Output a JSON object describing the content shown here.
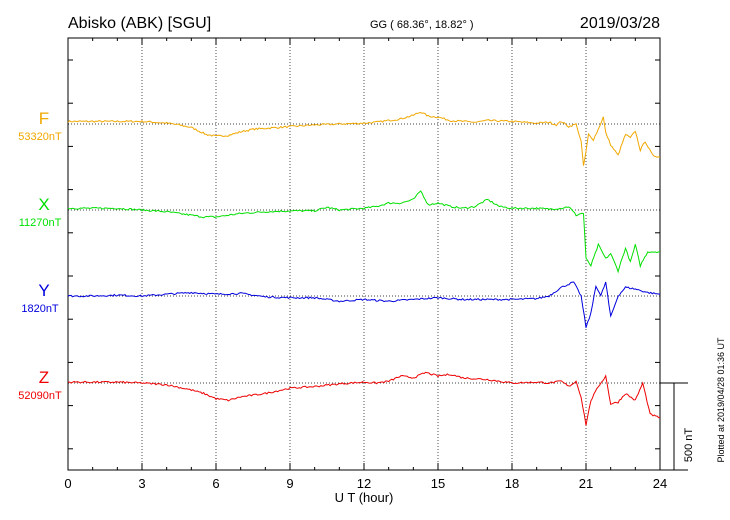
{
  "header": {
    "station": "Abisko (ABK)  [SGU]",
    "coords": "GG ( 68.36°,  18.82° )",
    "date": "2019/03/28"
  },
  "footer_note": "Plotted at 2019/04/28 01:36 UT",
  "scale_label": "500 nT",
  "colors": {
    "F": "#f0a800",
    "X": "#00e000",
    "Y": "#0000dd",
    "Z": "#ee0000"
  },
  "chart_data": {
    "type": "line",
    "xlabel": "U T (hour)",
    "ylabel": "",
    "xlim": [
      0,
      24
    ],
    "xticks": [
      0,
      3,
      6,
      9,
      12,
      15,
      18,
      21,
      24
    ],
    "grid": true,
    "scale_bar_nT": 500,
    "series": [
      {
        "name": "F",
        "baseline_label": "53320nT",
        "baseline_nT": 53320,
        "x": [
          0,
          1,
          2,
          3,
          4,
          4.5,
          5,
          5.3,
          5.6,
          6,
          6.5,
          7,
          7.5,
          8,
          9,
          10,
          11,
          12,
          12.5,
          13,
          13.5,
          14,
          14.3,
          14.6,
          15,
          15.5,
          16,
          16.5,
          17,
          18,
          19,
          19.5,
          19.8,
          20,
          20.3,
          20.6,
          20.8,
          20.9,
          21,
          21.1,
          21.3,
          21.5,
          21.7,
          21.8,
          22,
          22.3,
          22.6,
          22.8,
          23,
          23.2,
          23.4,
          23.7,
          24
        ],
        "values": [
          15,
          15,
          15,
          15,
          5,
          -5,
          -20,
          -40,
          -60,
          -70,
          -65,
          -45,
          -30,
          -25,
          -15,
          -5,
          0,
          5,
          10,
          20,
          30,
          50,
          70,
          45,
          40,
          20,
          15,
          10,
          20,
          15,
          5,
          10,
          -5,
          15,
          -15,
          0,
          -100,
          -240,
          -160,
          -60,
          -90,
          -30,
          40,
          -50,
          -120,
          -180,
          -60,
          -80,
          -40,
          -150,
          -100,
          -180,
          -190
        ]
      },
      {
        "name": "X",
        "baseline_label": "11270nT",
        "baseline_nT": 11270,
        "x": [
          0,
          1,
          2,
          3,
          4,
          4.5,
          5,
          5.5,
          6,
          6.5,
          7,
          7.5,
          8,
          9,
          10,
          10.5,
          11,
          12,
          12.5,
          13,
          13.5,
          14,
          14.3,
          14.6,
          15,
          15.5,
          16,
          16.5,
          17,
          17.5,
          18,
          19,
          19.5,
          20,
          20.3,
          20.6,
          20.8,
          20.9,
          21,
          21.2,
          21.5,
          21.8,
          22,
          22.3,
          22.6,
          22.8,
          23,
          23.2,
          23.5,
          24
        ],
        "values": [
          10,
          10,
          10,
          0,
          -10,
          -20,
          -30,
          -40,
          -40,
          -30,
          -20,
          -15,
          -10,
          -5,
          -5,
          15,
          0,
          10,
          20,
          40,
          40,
          60,
          110,
          30,
          40,
          20,
          10,
          20,
          60,
          20,
          10,
          10,
          5,
          10,
          20,
          -30,
          -20,
          -20,
          -280,
          -320,
          -200,
          -280,
          -250,
          -350,
          -220,
          -300,
          -200,
          -320,
          -240,
          -240
        ]
      },
      {
        "name": "Y",
        "baseline_label": "1820nT",
        "baseline_nT": 1820,
        "x": [
          0,
          1,
          2,
          3,
          4,
          5,
          6,
          7,
          8,
          9,
          10,
          11,
          12,
          13,
          14,
          15,
          16,
          17,
          18,
          19,
          19.5,
          20,
          20.5,
          20.8,
          21,
          21.2,
          21.4,
          21.6,
          21.8,
          22,
          22.3,
          22.6,
          23,
          23.5,
          24
        ],
        "values": [
          0,
          0,
          5,
          0,
          10,
          20,
          10,
          15,
          -5,
          -10,
          -10,
          -30,
          -20,
          -30,
          -20,
          -10,
          -20,
          -20,
          -20,
          -15,
          0,
          50,
          80,
          0,
          -180,
          -100,
          60,
          0,
          80,
          -120,
          0,
          50,
          40,
          20,
          10
        ]
      },
      {
        "name": "Z",
        "baseline_label": "52090nT",
        "baseline_nT": 52090,
        "x": [
          0,
          1,
          2,
          3,
          4,
          5,
          5.5,
          6,
          6.5,
          7,
          8,
          9,
          10,
          11,
          12,
          12.5,
          13,
          13.5,
          14,
          14.5,
          15,
          15.5,
          16,
          17,
          18,
          19,
          19.5,
          20,
          20.3,
          20.6,
          20.8,
          21,
          21.2,
          21.5,
          21.8,
          22,
          22.3,
          22.6,
          23,
          23.3,
          23.6,
          24
        ],
        "values": [
          5,
          5,
          5,
          0,
          -10,
          -40,
          -60,
          -90,
          -100,
          -80,
          -60,
          -30,
          -20,
          -5,
          5,
          0,
          10,
          40,
          30,
          60,
          40,
          50,
          30,
          20,
          0,
          5,
          0,
          10,
          -20,
          10,
          -80,
          -240,
          -100,
          -20,
          40,
          -120,
          -110,
          -60,
          -100,
          0,
          -180,
          -200
        ]
      }
    ]
  }
}
